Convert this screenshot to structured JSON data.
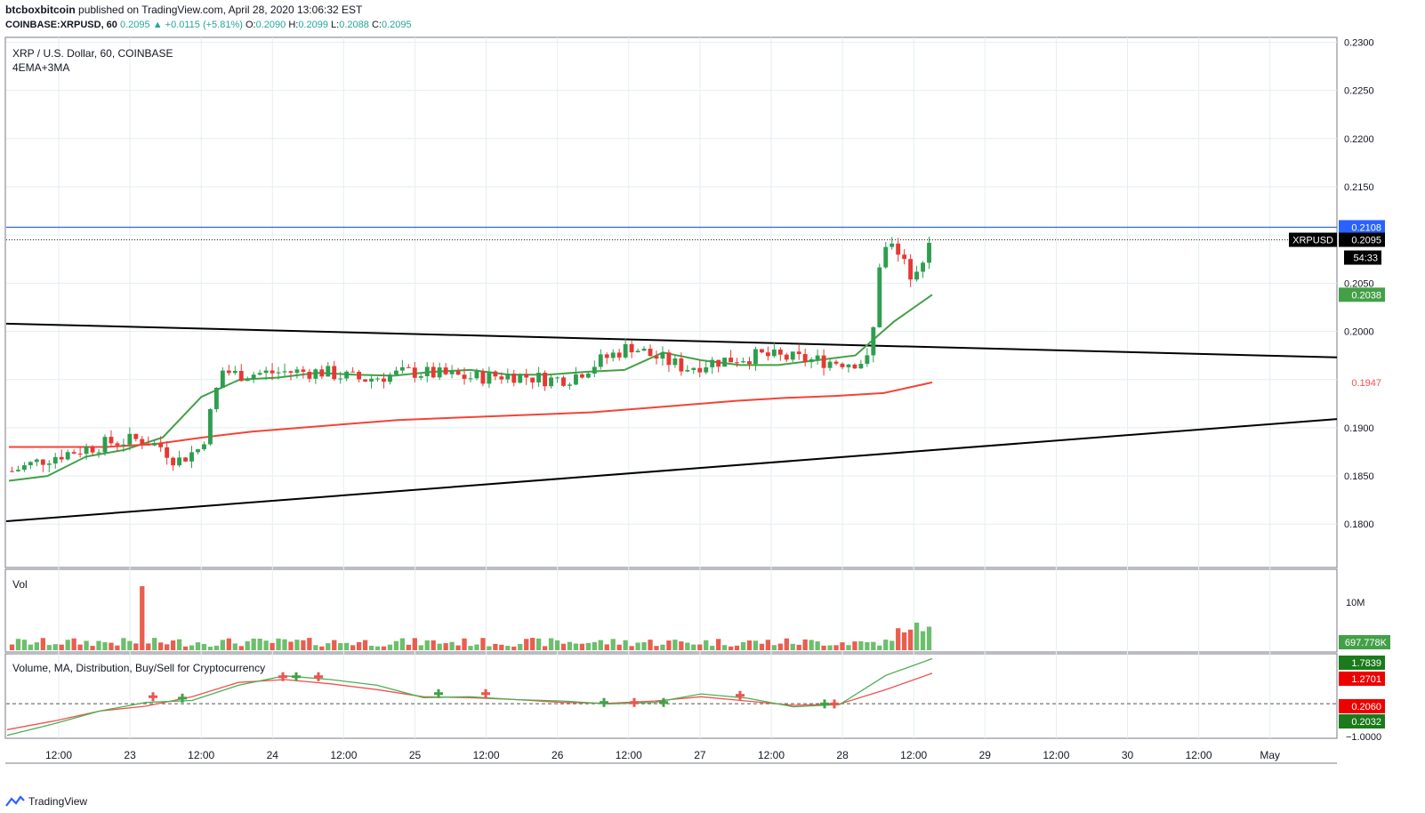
{
  "header": {
    "author": "btcboxbitcoin",
    "published_text": "published on TradingView.com, April 28, 2020 13:06:32 EST",
    "symbol_line": "COINBASE:XRPUSD, 60",
    "last": "0.2095",
    "arrow": "▲",
    "change": "+0.0115 (+5.81%)",
    "o_label": "O:",
    "o_value": "0.2090",
    "h_label": "H:",
    "h_value": "0.2099",
    "l_label": "L:",
    "l_value": "0.2088",
    "c_label": "C:",
    "c_value": "0.2095"
  },
  "pane_labels": {
    "main_title": "XRP / U.S. Dollar, 60, COINBASE",
    "main_indicator": "4EMA+3MA",
    "volume": "Vol",
    "distribution": "Volume, MA, Distribution, Buy/Sell for Cryptocurrency"
  },
  "price_labels": {
    "resistance": "0.2108",
    "symbol_tag": "XRPUSD",
    "last": "0.2095",
    "countdown": "54:33",
    "ema": "0.2038",
    "ma": "0.1947",
    "vol_last": "697.778K",
    "vol_axis": "10M",
    "dist_green_top": "1.7839",
    "dist_red": "1.2701",
    "dist_red2": "0.2060",
    "dist_green2": "0.2032",
    "dist_neg": "−1.0000"
  },
  "footer": {
    "brand": "TradingView"
  },
  "colors": {
    "up": "#26a69a",
    "down": "#ef5350",
    "candle_up": "#2e9e4f",
    "candle_down": "#e53935",
    "ema": "#43a047",
    "ma": "#f44336",
    "resistance": "#2962ff",
    "trend": "#000000",
    "grid": "#e6eef1"
  },
  "chart_data": {
    "type": "candlestick",
    "symbol": "COINBASE:XRPUSD",
    "interval": "60",
    "y_axis_ticks": [
      "0.2300",
      "0.2250",
      "0.2200",
      "0.2150",
      "0.2100",
      "0.2050",
      "0.2000",
      "0.1950",
      "0.1900",
      "0.1850",
      "0.1800"
    ],
    "ylim": [
      0.1755,
      0.2305
    ],
    "x_axis_ticks": [
      "12:00",
      "23",
      "12:00",
      "24",
      "12:00",
      "25",
      "12:00",
      "26",
      "12:00",
      "27",
      "12:00",
      "28",
      "12:00",
      "29",
      "12:00",
      "30",
      "12:00",
      "May"
    ],
    "bars_visible": 149,
    "candles_ohlc_sample": [
      [
        0.1854,
        0.1861,
        0.185,
        0.1858
      ],
      [
        0.1858,
        0.1862,
        0.1852,
        0.1855
      ],
      [
        0.1855,
        0.1865,
        0.1851,
        0.186
      ],
      [
        0.1876,
        0.189,
        0.1874,
        0.1885
      ],
      [
        0.1885,
        0.1896,
        0.1878,
        0.188
      ],
      [
        0.188,
        0.1888,
        0.1875,
        0.1884
      ],
      [
        0.19,
        0.1912,
        0.188,
        0.1885
      ],
      [
        0.1875,
        0.1881,
        0.1858,
        0.1862
      ],
      [
        0.1867,
        0.1882,
        0.1865,
        0.188
      ],
      [
        0.1925,
        0.2,
        0.192,
        0.1985
      ],
      [
        0.1985,
        0.199,
        0.194,
        0.195
      ],
      [
        0.1965,
        0.1972,
        0.195,
        0.1968
      ],
      [
        0.196,
        0.197,
        0.1915,
        0.1925
      ],
      [
        0.195,
        0.1968,
        0.1938,
        0.196
      ],
      [
        0.1945,
        0.1965,
        0.1935,
        0.1952
      ],
      [
        0.1935,
        0.1955,
        0.192,
        0.195
      ],
      [
        0.196,
        0.1975,
        0.1942,
        0.1948
      ],
      [
        0.195,
        0.196,
        0.1935,
        0.1955
      ],
      [
        0.1955,
        0.1968,
        0.1943,
        0.1948
      ],
      [
        0.195,
        0.1965,
        0.194,
        0.196
      ],
      [
        0.198,
        0.199,
        0.1962,
        0.1965
      ],
      [
        0.1962,
        0.197,
        0.1945,
        0.1958
      ],
      [
        0.196,
        0.1985,
        0.1955,
        0.1978
      ],
      [
        0.199,
        0.2,
        0.1982,
        0.1995
      ],
      [
        0.199,
        0.1996,
        0.1965,
        0.1973
      ],
      [
        0.1965,
        0.1975,
        0.194,
        0.1958
      ],
      [
        0.1965,
        0.1985,
        0.196,
        0.198
      ],
      [
        0.1975,
        0.198,
        0.1955,
        0.1965
      ],
      [
        0.197,
        0.21,
        0.1965,
        0.208
      ],
      [
        0.21,
        0.2108,
        0.2065,
        0.2083
      ],
      [
        0.2095,
        0.2103,
        0.205,
        0.2055
      ],
      [
        0.208,
        0.2099,
        0.207,
        0.2095
      ]
    ],
    "series": [
      {
        "name": "4EMA+3MA",
        "type": "line",
        "last": 0.2038,
        "values": [
          0.1845,
          0.185,
          0.187,
          0.1877,
          0.189,
          0.1932,
          0.195,
          0.1952,
          0.1957,
          0.1955,
          0.1954,
          0.1958,
          0.196,
          0.1955,
          0.1955,
          0.1958,
          0.196,
          0.1978,
          0.197,
          0.1965,
          0.1965,
          0.197,
          0.1975,
          0.201,
          0.2038
        ]
      },
      {
        "name": "4EMA+3MA (MA)",
        "type": "line",
        "last": 0.1947,
        "values": [
          0.188,
          0.188,
          0.188,
          0.1883,
          0.189,
          0.1896,
          0.19,
          0.1904,
          0.1908,
          0.191,
          0.1912,
          0.1914,
          0.1916,
          0.192,
          0.1924,
          0.1928,
          0.1931,
          0.1933,
          0.1936,
          0.1947
        ]
      },
      {
        "name": "Resistance",
        "type": "hline",
        "value": 0.2108
      },
      {
        "name": "Upper trendline",
        "type": "trendline",
        "from_value": 0.2008,
        "to_value": 0.1973
      },
      {
        "name": "Lower trendline",
        "type": "trendline",
        "from_value": 0.1803,
        "to_value": 0.1909
      }
    ],
    "volume": {
      "last": "697.778K",
      "axis_tick": "10M"
    }
  }
}
